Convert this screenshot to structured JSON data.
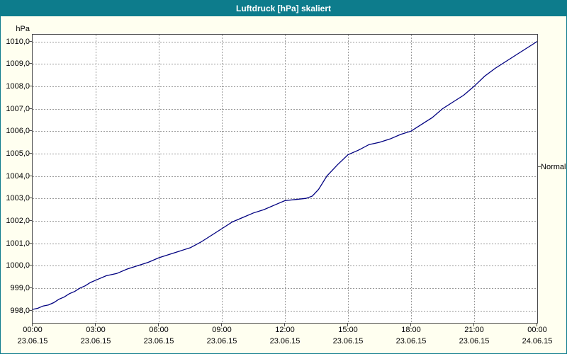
{
  "title": "Luftdruck [hPa] skaliert",
  "colors": {
    "titlebar": "#0d7c8c",
    "background": "#fffff0",
    "plot_background": "#ffffff",
    "grid": "#9a9a9a",
    "line": "#000080",
    "border": "#4a4a4a"
  },
  "chart_data": {
    "type": "line",
    "title": "Luftdruck [hPa] skaliert",
    "xlabel": "",
    "ylabel": "hPa",
    "ylim": [
      997.45,
      1010.3
    ],
    "xlim_hours": [
      0,
      24
    ],
    "grid": "dashed",
    "legend": "none",
    "annotation": "Normal",
    "annotation_value": 1004.4,
    "y_ticks": [
      {
        "value": 1010,
        "label": "1010,0"
      },
      {
        "value": 1009,
        "label": "1009,0"
      },
      {
        "value": 1008,
        "label": "1008,0"
      },
      {
        "value": 1007,
        "label": "1007,0"
      },
      {
        "value": 1006,
        "label": "1006,0"
      },
      {
        "value": 1005,
        "label": "1005,0"
      },
      {
        "value": 1004,
        "label": "1004,0"
      },
      {
        "value": 1003,
        "label": "1003,0"
      },
      {
        "value": 1002,
        "label": "1002,0"
      },
      {
        "value": 1001,
        "label": "1001,0"
      },
      {
        "value": 1000,
        "label": "1000,0"
      },
      {
        "value": 999,
        "label": "999,0"
      },
      {
        "value": 998,
        "label": "998,0"
      }
    ],
    "x_ticks": [
      {
        "hour": 0,
        "time": "00:00",
        "date": "23.06.15"
      },
      {
        "hour": 3,
        "time": "03:00",
        "date": "23.06.15"
      },
      {
        "hour": 6,
        "time": "06:00",
        "date": "23.06.15"
      },
      {
        "hour": 9,
        "time": "09:00",
        "date": "23.06.15"
      },
      {
        "hour": 12,
        "time": "12:00",
        "date": "23.06.15"
      },
      {
        "hour": 15,
        "time": "15:00",
        "date": "23.06.15"
      },
      {
        "hour": 18,
        "time": "18:00",
        "date": "23.06.15"
      },
      {
        "hour": 21,
        "time": "21:00",
        "date": "23.06.15"
      },
      {
        "hour": 24,
        "time": "00:00",
        "date": "24.06.15"
      }
    ],
    "series": [
      {
        "name": "Luftdruck",
        "color": "#000080",
        "points": [
          [
            0,
            998.05
          ],
          [
            0.25,
            998.1
          ],
          [
            0.5,
            998.2
          ],
          [
            0.75,
            998.25
          ],
          [
            1,
            998.35
          ],
          [
            1.25,
            998.5
          ],
          [
            1.5,
            998.6
          ],
          [
            1.75,
            998.75
          ],
          [
            2,
            998.85
          ],
          [
            2.25,
            999.0
          ],
          [
            2.5,
            999.1
          ],
          [
            2.75,
            999.25
          ],
          [
            3,
            999.35
          ],
          [
            3.5,
            999.55
          ],
          [
            4,
            999.65
          ],
          [
            4.5,
            999.85
          ],
          [
            5,
            1000.0
          ],
          [
            5.5,
            1000.15
          ],
          [
            6,
            1000.35
          ],
          [
            6.5,
            1000.5
          ],
          [
            7,
            1000.65
          ],
          [
            7.5,
            1000.8
          ],
          [
            8,
            1001.05
          ],
          [
            8.5,
            1001.35
          ],
          [
            9,
            1001.65
          ],
          [
            9.5,
            1001.95
          ],
          [
            10,
            1002.15
          ],
          [
            10.5,
            1002.35
          ],
          [
            11,
            1002.5
          ],
          [
            11.5,
            1002.7
          ],
          [
            12,
            1002.9
          ],
          [
            12.5,
            1002.95
          ],
          [
            13,
            1003.0
          ],
          [
            13.3,
            1003.1
          ],
          [
            13.6,
            1003.4
          ],
          [
            14,
            1004.0
          ],
          [
            14.5,
            1004.5
          ],
          [
            15,
            1004.95
          ],
          [
            15.5,
            1005.15
          ],
          [
            16,
            1005.4
          ],
          [
            16.5,
            1005.5
          ],
          [
            17,
            1005.65
          ],
          [
            17.5,
            1005.85
          ],
          [
            18,
            1006.0
          ],
          [
            18.5,
            1006.3
          ],
          [
            19,
            1006.6
          ],
          [
            19.5,
            1007.0
          ],
          [
            20,
            1007.3
          ],
          [
            20.5,
            1007.6
          ],
          [
            21,
            1008.0
          ],
          [
            21.5,
            1008.45
          ],
          [
            22,
            1008.8
          ],
          [
            22.5,
            1009.1
          ],
          [
            23,
            1009.4
          ],
          [
            23.5,
            1009.7
          ],
          [
            24,
            1010.0
          ]
        ]
      }
    ]
  }
}
